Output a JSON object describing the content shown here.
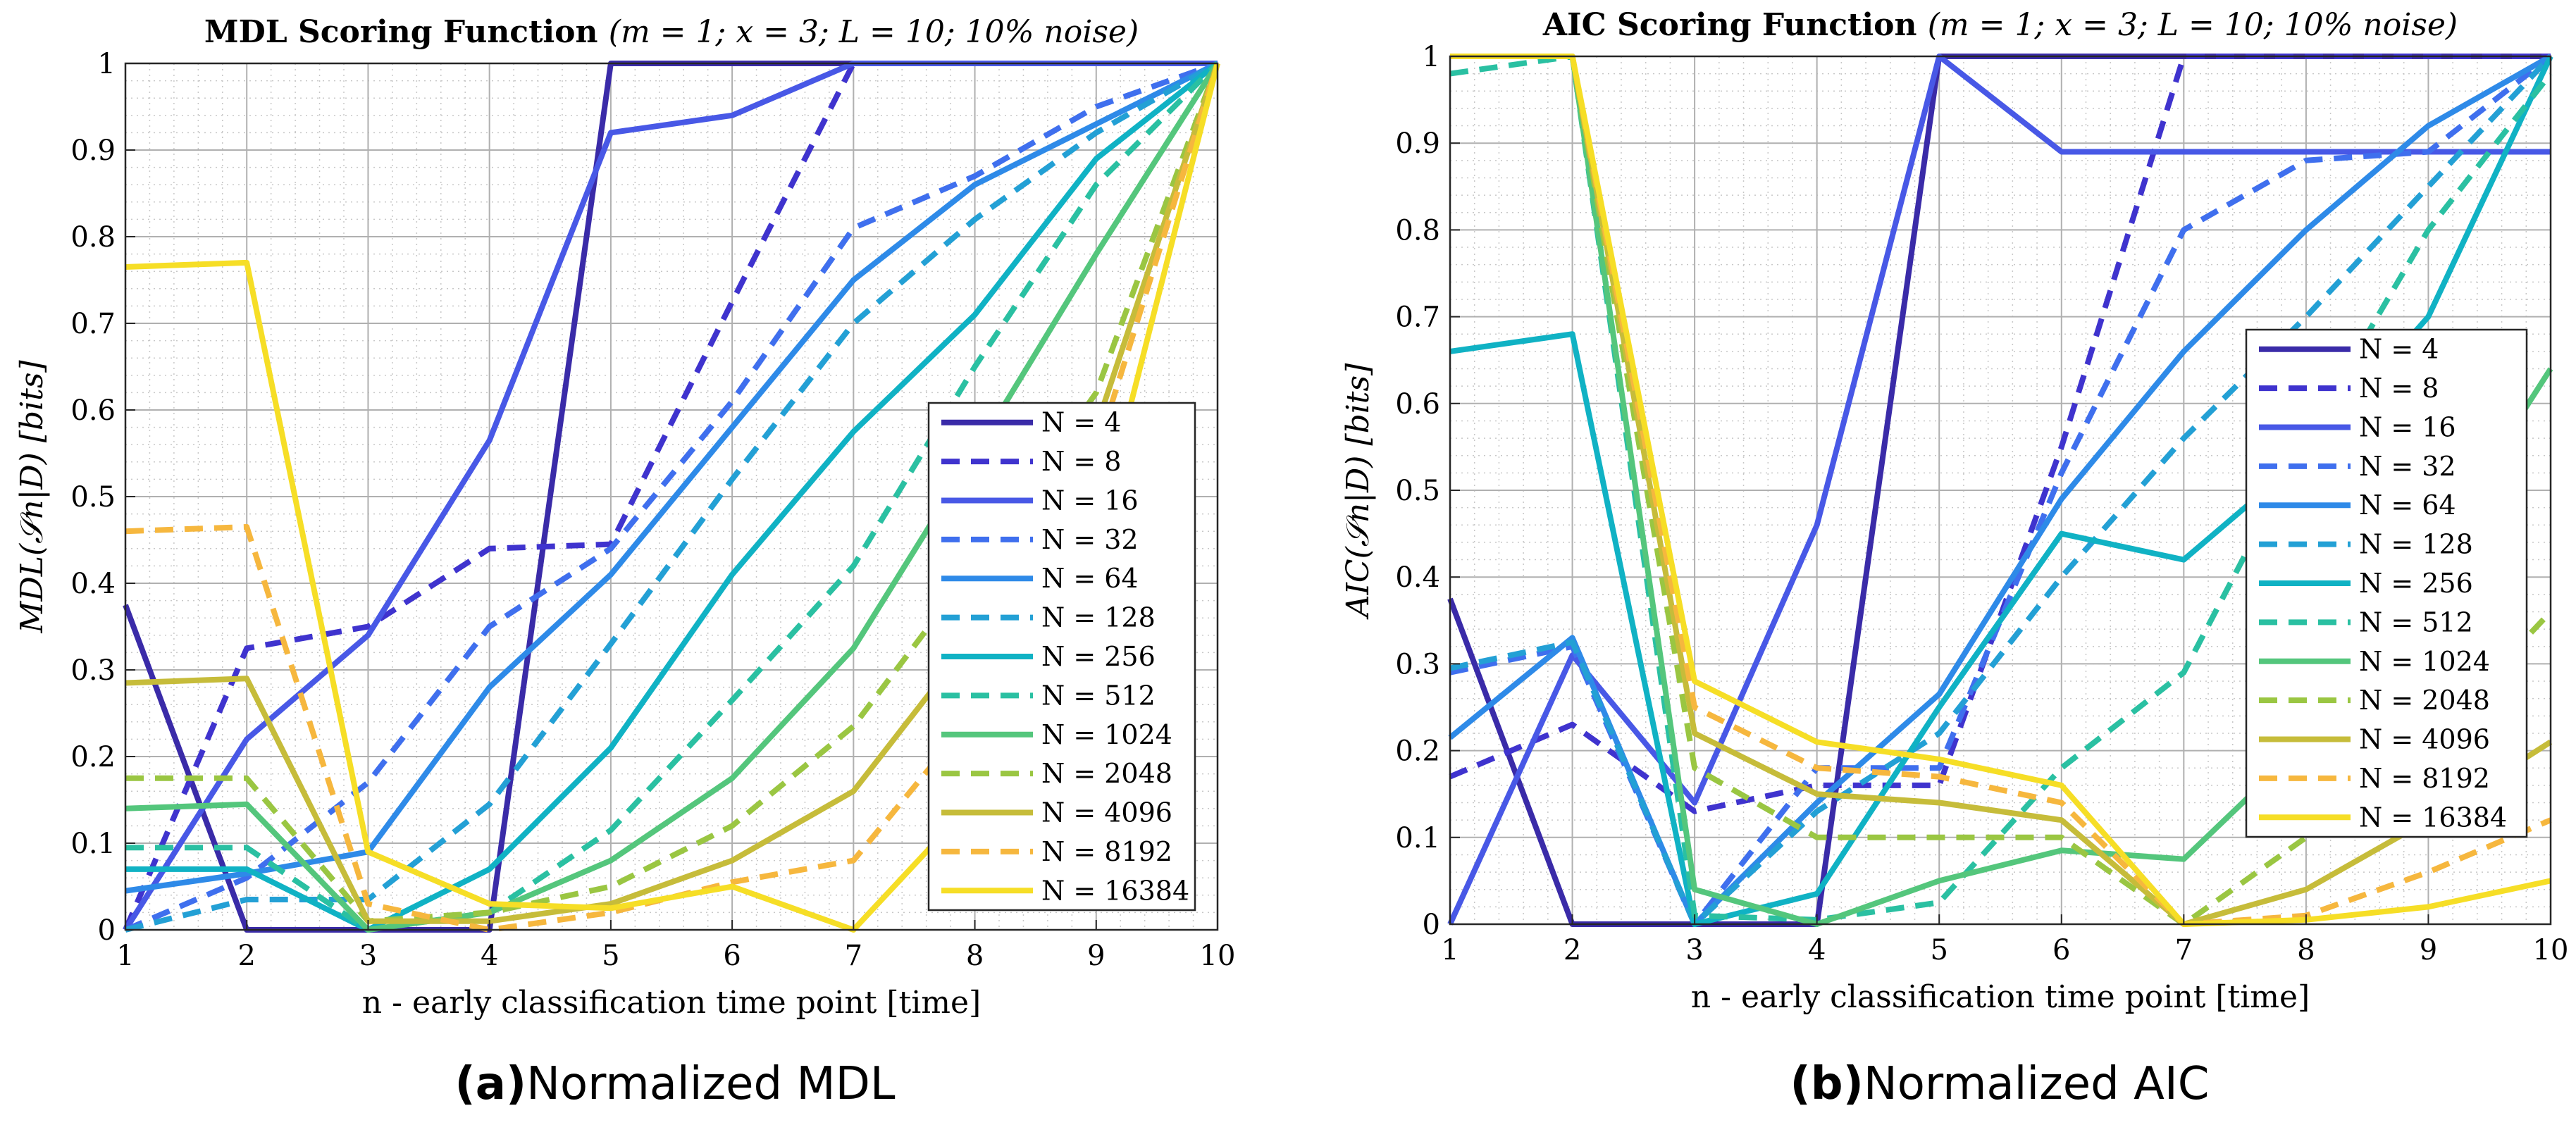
{
  "chart_data": [
    {
      "type": "line",
      "title_bold": "MDL Scoring Function",
      "title_rest": "(m = 1; x = 3; L = 10; 10% noise)",
      "xlabel": "n - early classification time point [time]",
      "ylabel": "MDL(𝒮n|D) [bits]",
      "xlim": [
        1,
        10
      ],
      "ylim": [
        0,
        1
      ],
      "xticks": [
        "1",
        "2",
        "3",
        "4",
        "5",
        "6",
        "7",
        "8",
        "9",
        "10"
      ],
      "yticks": [
        "0",
        "0.1",
        "0.2",
        "0.3",
        "0.4",
        "0.5",
        "0.6",
        "0.7",
        "0.8",
        "0.9",
        "1"
      ],
      "grid": true,
      "legend_position": "center-right",
      "caption_label": "(a)",
      "caption_text": "Normalized MDL",
      "x": [
        1,
        2,
        3,
        4,
        5,
        6,
        7,
        8,
        9,
        10
      ],
      "series": [
        {
          "name": "N = 4",
          "color": "#3A2BA8",
          "dash": "solid",
          "values": [
            0.375,
            0,
            0,
            0,
            1,
            1,
            1,
            1,
            1,
            1
          ]
        },
        {
          "name": "N = 8",
          "color": "#3F33CE",
          "dash": "dashed",
          "values": [
            0,
            0.325,
            0.35,
            0.44,
            0.445,
            0.725,
            1,
            1,
            1,
            1
          ]
        },
        {
          "name": "N = 16",
          "color": "#4858E6",
          "dash": "solid",
          "values": [
            0,
            0.22,
            0.34,
            0.565,
            0.92,
            0.94,
            1,
            1,
            1,
            1
          ]
        },
        {
          "name": "N = 32",
          "color": "#3F6FEE",
          "dash": "dashed",
          "values": [
            0,
            0.06,
            0.17,
            0.35,
            0.44,
            0.61,
            0.81,
            0.87,
            0.95,
            1
          ]
        },
        {
          "name": "N = 64",
          "color": "#2E8AE8",
          "dash": "solid",
          "values": [
            0.045,
            0.065,
            0.09,
            0.28,
            0.41,
            0.58,
            0.75,
            0.86,
            0.93,
            1
          ]
        },
        {
          "name": "N = 128",
          "color": "#23A0D5",
          "dash": "dashed",
          "values": [
            0,
            0.035,
            0.035,
            0.145,
            0.33,
            0.52,
            0.7,
            0.82,
            0.92,
            1
          ]
        },
        {
          "name": "N = 256",
          "color": "#10B2C4",
          "dash": "solid",
          "values": [
            0.07,
            0.07,
            0,
            0.07,
            0.21,
            0.41,
            0.575,
            0.71,
            0.89,
            1
          ]
        },
        {
          "name": "N = 512",
          "color": "#2AC0A2",
          "dash": "dashed",
          "values": [
            0.095,
            0.095,
            0,
            0.02,
            0.115,
            0.265,
            0.42,
            0.65,
            0.86,
            1
          ]
        },
        {
          "name": "N = 1024",
          "color": "#54C67C",
          "dash": "solid",
          "values": [
            0.14,
            0.145,
            0,
            0.02,
            0.08,
            0.175,
            0.325,
            0.55,
            0.78,
            1
          ]
        },
        {
          "name": "N = 2048",
          "color": "#9AC642",
          "dash": "dashed",
          "values": [
            0.175,
            0.175,
            0.01,
            0.02,
            0.05,
            0.12,
            0.235,
            0.42,
            0.62,
            1
          ]
        },
        {
          "name": "N = 4096",
          "color": "#C6BC3A",
          "dash": "solid",
          "values": [
            0.285,
            0.29,
            0.01,
            0.01,
            0.03,
            0.08,
            0.16,
            0.34,
            0.58,
            1
          ]
        },
        {
          "name": "N = 8192",
          "color": "#F6B73E",
          "dash": "dashed",
          "values": [
            0.46,
            0.465,
            0.03,
            0,
            0.02,
            0.055,
            0.08,
            0.25,
            0.55,
            1
          ]
        },
        {
          "name": "N = 16384",
          "color": "#F6DE26",
          "dash": "solid",
          "values": [
            0.765,
            0.77,
            0.09,
            0.03,
            0.025,
            0.05,
            0,
            0.15,
            0.45,
            1
          ]
        }
      ]
    },
    {
      "type": "line",
      "title_bold": "AIC Scoring Function",
      "title_rest": "(m = 1; x = 3; L = 10; 10% noise)",
      "xlabel": "n - early classification time point [time]",
      "ylabel": "AIC(𝒮n|D) [bits]",
      "xlim": [
        1,
        10
      ],
      "ylim": [
        0,
        1
      ],
      "xticks": [
        "1",
        "2",
        "3",
        "4",
        "5",
        "6",
        "7",
        "8",
        "9",
        "10"
      ],
      "yticks": [
        "0",
        "0.1",
        "0.2",
        "0.3",
        "0.4",
        "0.5",
        "0.6",
        "0.7",
        "0.8",
        "0.9",
        "1"
      ],
      "grid": true,
      "legend_position": "top-right",
      "caption_label": "(b)",
      "caption_text": "Normalized AIC",
      "x": [
        1,
        2,
        3,
        4,
        5,
        6,
        7,
        8,
        9,
        10
      ],
      "series": [
        {
          "name": "N = 4",
          "color": "#3A2BA8",
          "dash": "solid",
          "values": [
            0.375,
            0,
            0,
            0,
            1,
            1,
            1,
            1,
            1,
            1
          ]
        },
        {
          "name": "N = 8",
          "color": "#3F33CE",
          "dash": "dashed",
          "values": [
            0.17,
            0.23,
            0.13,
            0.16,
            0.16,
            0.55,
            1,
            1,
            1,
            1
          ]
        },
        {
          "name": "N = 16",
          "color": "#4858E6",
          "dash": "solid",
          "values": [
            0,
            0.31,
            0.14,
            0.46,
            1,
            0.89,
            0.89,
            0.89,
            0.89,
            0.89
          ]
        },
        {
          "name": "N = 32",
          "color": "#3F6FEE",
          "dash": "dashed",
          "values": [
            0.29,
            0.32,
            0,
            0.18,
            0.18,
            0.52,
            0.8,
            0.88,
            0.89,
            1
          ]
        },
        {
          "name": "N = 64",
          "color": "#2E8AE8",
          "dash": "solid",
          "values": [
            0.215,
            0.33,
            0,
            0.14,
            0.265,
            0.49,
            0.66,
            0.8,
            0.92,
            1
          ]
        },
        {
          "name": "N = 128",
          "color": "#23A0D5",
          "dash": "dashed",
          "values": [
            0.295,
            0.325,
            0,
            0.13,
            0.22,
            0.4,
            0.56,
            0.7,
            0.85,
            1
          ]
        },
        {
          "name": "N = 256",
          "color": "#10B2C4",
          "dash": "solid",
          "values": [
            0.66,
            0.68,
            0,
            0.035,
            0.25,
            0.45,
            0.42,
            0.54,
            0.7,
            1
          ]
        },
        {
          "name": "N = 512",
          "color": "#2AC0A2",
          "dash": "dashed",
          "values": [
            0.98,
            1,
            0.01,
            0.005,
            0.025,
            0.18,
            0.29,
            0.56,
            0.8,
            0.98
          ]
        },
        {
          "name": "N = 1024",
          "color": "#54C67C",
          "dash": "solid",
          "values": [
            1,
            1,
            0.04,
            0,
            0.05,
            0.085,
            0.075,
            0.21,
            0.42,
            0.64
          ]
        },
        {
          "name": "N = 2048",
          "color": "#9AC642",
          "dash": "dashed",
          "values": [
            1,
            1,
            0.18,
            0.1,
            0.1,
            0.1,
            0,
            0.1,
            0.21,
            0.36
          ]
        },
        {
          "name": "N = 4096",
          "color": "#C6BC3A",
          "dash": "solid",
          "values": [
            1,
            1,
            0.22,
            0.15,
            0.14,
            0.12,
            0,
            0.04,
            0.12,
            0.21
          ]
        },
        {
          "name": "N = 8192",
          "color": "#F6B73E",
          "dash": "dashed",
          "values": [
            1,
            1,
            0.25,
            0.18,
            0.17,
            0.14,
            0,
            0.01,
            0.06,
            0.12
          ]
        },
        {
          "name": "N = 16384",
          "color": "#F6DE26",
          "dash": "solid",
          "values": [
            1,
            1,
            0.28,
            0.21,
            0.19,
            0.16,
            0,
            0.005,
            0.02,
            0.05
          ]
        }
      ]
    }
  ]
}
